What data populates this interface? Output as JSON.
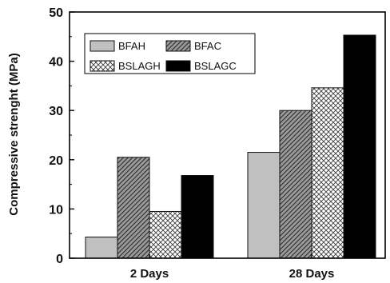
{
  "chart_data": {
    "type": "bar",
    "title": "",
    "xlabel": "",
    "ylabel": "Compressive strenght (MPa)",
    "ylim": [
      0,
      50
    ],
    "yticks": [
      0,
      10,
      20,
      30,
      40,
      50
    ],
    "categories": [
      "2 Days",
      "28 Days"
    ],
    "series": [
      {
        "name": "BFAH",
        "values": [
          4.3,
          21.5
        ],
        "pattern": "solid-light-gray",
        "color": "#c0c0c0"
      },
      {
        "name": "BFAC",
        "values": [
          20.5,
          30.0
        ],
        "pattern": "diagonal-hatch",
        "color": "#6a6a6a"
      },
      {
        "name": "BSLAGH",
        "values": [
          9.5,
          34.6
        ],
        "pattern": "crosshatch",
        "color": "#ffffff"
      },
      {
        "name": "BSLAGC",
        "values": [
          16.8,
          45.3
        ],
        "pattern": "solid-black",
        "color": "#000000"
      }
    ],
    "grid": false,
    "legend": {
      "position": "top-left",
      "columns": 2
    }
  }
}
